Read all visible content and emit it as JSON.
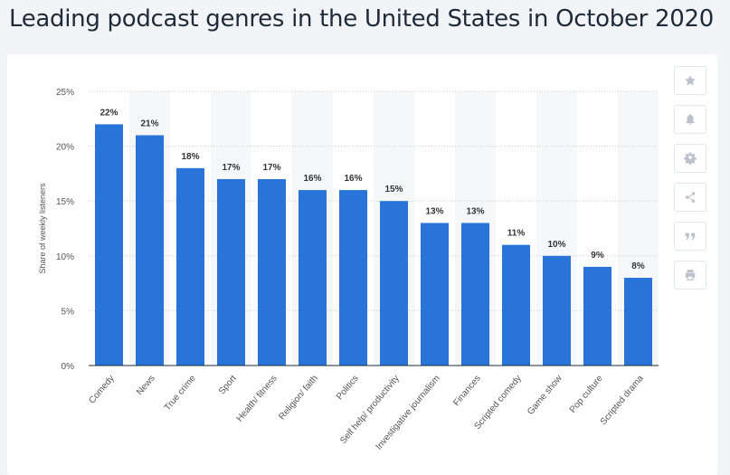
{
  "title": "Leading podcast genres in the United States in October 2020",
  "toolbar": [
    {
      "icon": "star-icon"
    },
    {
      "icon": "bell-icon"
    },
    {
      "icon": "gear-icon"
    },
    {
      "icon": "share-icon"
    },
    {
      "icon": "quote-icon"
    },
    {
      "icon": "print-icon"
    }
  ],
  "chart_data": {
    "type": "bar",
    "categories": [
      "Comedy",
      "News",
      "True crime",
      "Sport",
      "Health/ fitness",
      "Religion/ faith",
      "Politics",
      "Self help/ productivity",
      "Investigative journalism",
      "Finances",
      "Scripted comedy",
      "Game show",
      "Pop culture",
      "Scripted drama"
    ],
    "values": [
      22,
      21,
      18,
      17,
      17,
      16,
      16,
      15,
      13,
      13,
      11,
      10,
      9,
      8
    ],
    "value_labels": [
      "22%",
      "21%",
      "18%",
      "17%",
      "17%",
      "16%",
      "16%",
      "15%",
      "13%",
      "13%",
      "11%",
      "10%",
      "9%",
      "8%"
    ],
    "ylabel": "Share of weekly listeners",
    "xlabel": "",
    "ylim": [
      0,
      25
    ],
    "yticks": [
      0,
      5,
      10,
      15,
      20,
      25
    ],
    "ytick_labels": [
      "0%",
      "5%",
      "10%",
      "15%",
      "20%",
      "25%"
    ],
    "grid": true,
    "bar_color": "#2874d9"
  }
}
